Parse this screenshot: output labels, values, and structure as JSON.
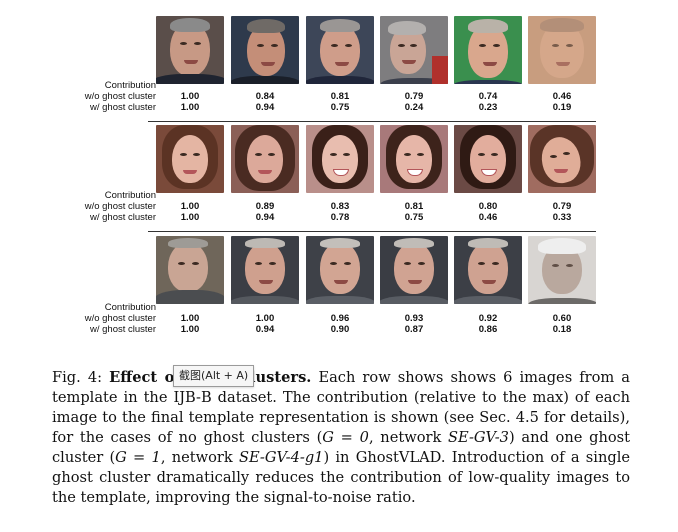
{
  "rows": [
    {
      "label_contribution": "Contribution",
      "label_without": "w/o ghost cluster",
      "label_with": "w/ ghost cluster",
      "without": [
        "1.00",
        "0.84",
        "0.81",
        "0.79",
        "0.74",
        "0.46"
      ],
      "with": [
        "1.00",
        "0.94",
        "0.75",
        "0.24",
        "0.23",
        "0.19"
      ]
    },
    {
      "label_contribution": "Contribution",
      "label_without": "w/o ghost cluster",
      "label_with": "w/ ghost cluster",
      "without": [
        "1.00",
        "0.89",
        "0.83",
        "0.81",
        "0.80",
        "0.79"
      ],
      "with": [
        "1.00",
        "0.94",
        "0.78",
        "0.75",
        "0.46",
        "0.33"
      ]
    },
    {
      "label_contribution": "Contribution",
      "label_without": "w/o ghost cluster",
      "label_with": "w/ ghost cluster",
      "without": [
        "1.00",
        "1.00",
        "0.96",
        "0.93",
        "0.92",
        "0.60"
      ],
      "with": [
        "1.00",
        "0.94",
        "0.90",
        "0.87",
        "0.86",
        "0.18"
      ]
    }
  ],
  "caption": {
    "fig_label": "Fig. 4:",
    "bold_title": "Effect of ghost clusters.",
    "text_1": "Each row shows shows 6 images from a template in the IJB-B dataset. The contribution (relative to the max) of each image to the final template representation is shown (see Sec. 4.5 for details), for the cases of no ghost clusters (",
    "eq_g0": "G = 0",
    "text_2": ", network ",
    "net_1": "SE-GV-3",
    "text_3": ") and one ghost cluster (",
    "eq_g1": "G = 1",
    "text_4": ", network ",
    "net_2": "SE-GV-4-g1",
    "text_5": ") in GhostVLAD. Introduction of a single ghost cluster dramatically reduces the contribution of low-quality images to the template, improving the signal-to-noise ratio."
  },
  "tooltip": {
    "text": "截图(Alt + A)"
  }
}
